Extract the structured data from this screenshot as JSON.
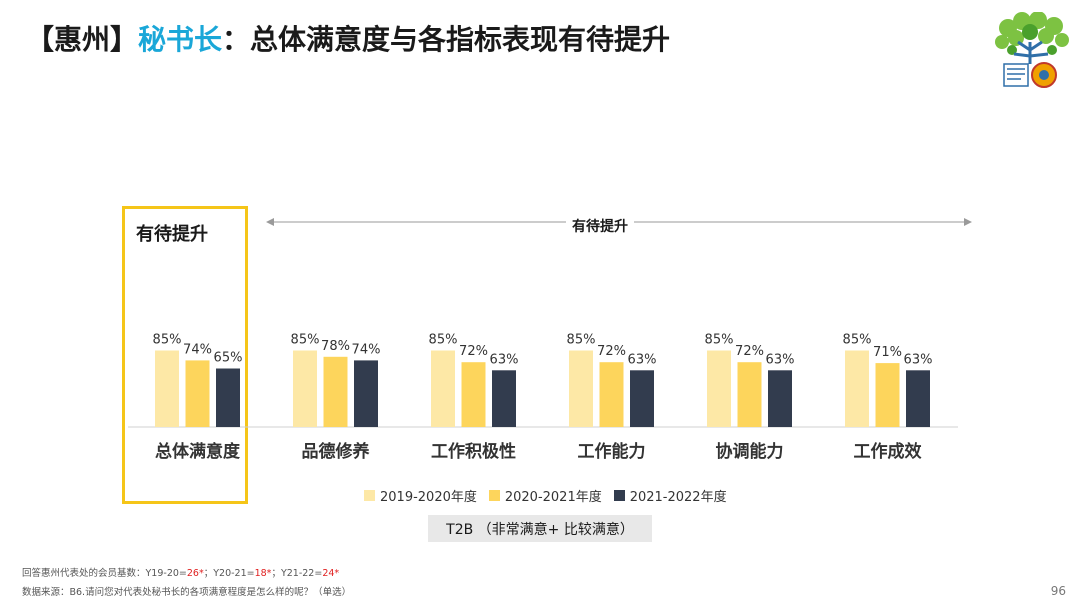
{
  "title": {
    "prefix": "【惠州】",
    "highlight": "秘书长",
    "suffix": "：总体满意度与各指标表现有待提升"
  },
  "highlight_box_label": "有待提升",
  "arrow_label": "有待提升",
  "t2b_label": "T2B （非常满意+ 比较满意）",
  "footnote1": {
    "text": "回答惠州代表处的会员基数：Y19-20=",
    "v1": "26*",
    "sep1": "；Y20-21=",
    "v2": "18*",
    "sep2": "；Y21-22=",
    "v3": "24*"
  },
  "footnote2": "数据来源：B6.请问您对代表处秘书长的各项满意程度是怎么样的呢？（单选）",
  "page_number": "96",
  "colors": {
    "accent": "#1aa7d8",
    "highlight_border": "#f5c518",
    "s1": "#fde8a6",
    "s2": "#fdd55c",
    "s3": "#323c4e"
  },
  "chart_data": {
    "type": "bar",
    "categories": [
      "总体满意度",
      "品德修养",
      "工作积极性",
      "工作能力",
      "协调能力",
      "工作成效"
    ],
    "series": [
      {
        "name": "2019-2020年度",
        "values": [
          85,
          85,
          85,
          85,
          85,
          85
        ]
      },
      {
        "name": "2020-2021年度",
        "values": [
          74,
          78,
          72,
          72,
          72,
          71
        ]
      },
      {
        "name": "2021-2022年度",
        "values": [
          65,
          74,
          63,
          63,
          63,
          63
        ]
      }
    ],
    "value_suffix": "%",
    "ylim": [
      0,
      100
    ],
    "grid": false,
    "legend_position": "bottom"
  }
}
